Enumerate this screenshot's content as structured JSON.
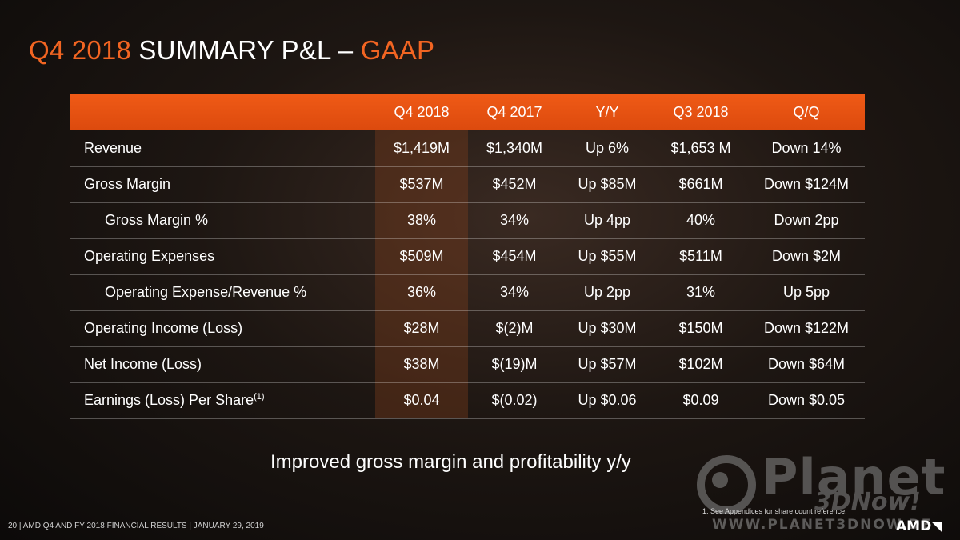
{
  "title": {
    "part1": "Q4 2018",
    "part2": "SUMMARY P&L –",
    "part3": "GAAP"
  },
  "table": {
    "columns": [
      "Q4 2018",
      "Q4 2017",
      "Y/Y",
      "Q3 2018",
      "Q/Q"
    ],
    "rows": [
      {
        "label": "Revenue",
        "cells": [
          "$1,419M",
          "$1,340M",
          "Up 6%",
          "$1,653 M",
          "Down 14%"
        ]
      },
      {
        "label": "Gross Margin",
        "cells": [
          "$537M",
          "$452M",
          "Up $85M",
          "$661M",
          "Down $124M"
        ]
      },
      {
        "label": "Gross Margin %",
        "cells": [
          "38%",
          "34%",
          "Up 4pp",
          "40%",
          "Down 2pp"
        ]
      },
      {
        "label": "Operating Expenses",
        "cells": [
          "$509M",
          "$454M",
          "Up $55M",
          "$511M",
          "Down $2M"
        ]
      },
      {
        "label": "Operating Expense/Revenue %",
        "cells": [
          "36%",
          "34%",
          "Up 2pp",
          "31%",
          "Up 5pp"
        ]
      },
      {
        "label": "Operating Income (Loss)",
        "cells": [
          "$28M",
          "$(2)M",
          "Up $30M",
          "$150M",
          "Down $122M"
        ]
      },
      {
        "label": "Net Income (Loss)",
        "cells": [
          "$38M",
          "$(19)M",
          "Up $57M",
          "$102M",
          "Down $64M"
        ]
      },
      {
        "label": "Earnings (Loss) Per Share",
        "sup": "(1)",
        "cells": [
          "$0.04",
          "$(0.02)",
          "Up $0.06",
          "$0.09",
          "Down $0.05"
        ]
      }
    ]
  },
  "tagline": "Improved gross margin and profitability y/y",
  "footnote": "1.    See Appendices for share count reference.",
  "footer": "20   |  AMD Q4 AND FY 2018 FINANCIAL RESULTS  |  JANUARY 29, 2019",
  "watermark": {
    "big": "Planet",
    "sub": "3DNow!",
    "url": "WWW.PLANET3DNOW.DE"
  },
  "logo": "AMD",
  "colors": {
    "accent": "#f26522",
    "header_bar": "#e8541a"
  }
}
